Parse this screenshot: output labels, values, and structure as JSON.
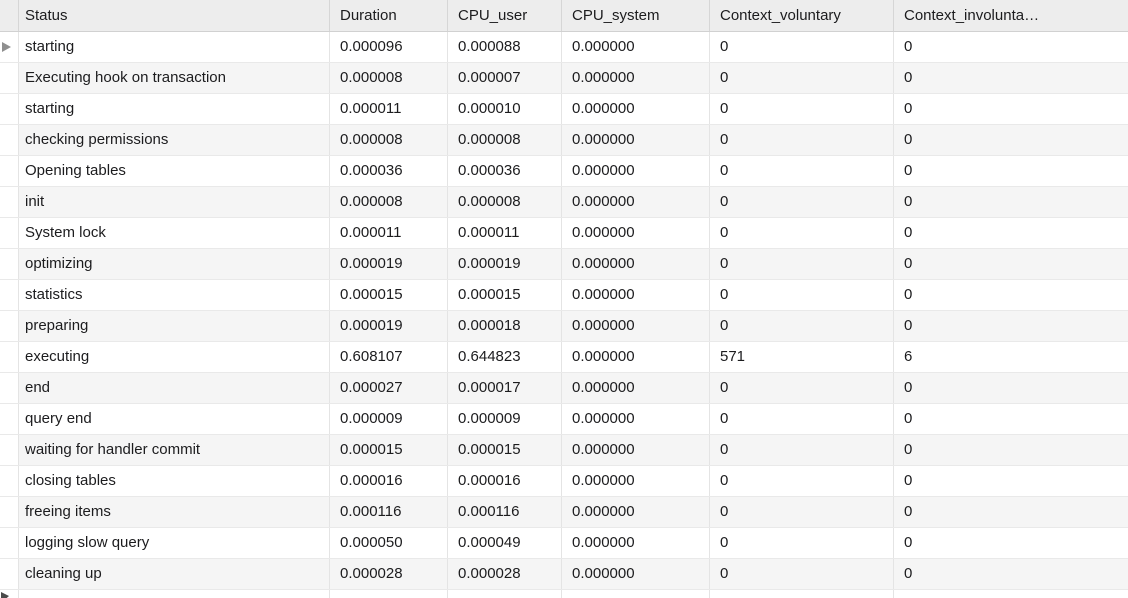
{
  "table": {
    "columns": [
      {
        "key": "status",
        "label": "Status"
      },
      {
        "key": "duration",
        "label": "Duration"
      },
      {
        "key": "cpu_user",
        "label": "CPU_user"
      },
      {
        "key": "cpu_system",
        "label": "CPU_system"
      },
      {
        "key": "context_voluntary",
        "label": "Context_voluntary"
      },
      {
        "key": "context_involuntary",
        "label": "Context_involunta…"
      }
    ],
    "rows": [
      [
        "starting",
        "0.000096",
        "0.000088",
        "0.000000",
        "0",
        "0"
      ],
      [
        "Executing hook on transaction",
        "0.000008",
        "0.000007",
        "0.000000",
        "0",
        "0"
      ],
      [
        "starting",
        "0.000011",
        "0.000010",
        "0.000000",
        "0",
        "0"
      ],
      [
        "checking permissions",
        "0.000008",
        "0.000008",
        "0.000000",
        "0",
        "0"
      ],
      [
        "Opening tables",
        "0.000036",
        "0.000036",
        "0.000000",
        "0",
        "0"
      ],
      [
        "init",
        "0.000008",
        "0.000008",
        "0.000000",
        "0",
        "0"
      ],
      [
        "System lock",
        "0.000011",
        "0.000011",
        "0.000000",
        "0",
        "0"
      ],
      [
        "optimizing",
        "0.000019",
        "0.000019",
        "0.000000",
        "0",
        "0"
      ],
      [
        "statistics",
        "0.000015",
        "0.000015",
        "0.000000",
        "0",
        "0"
      ],
      [
        "preparing",
        "0.000019",
        "0.000018",
        "0.000000",
        "0",
        "0"
      ],
      [
        "executing",
        "0.608107",
        "0.644823",
        "0.000000",
        "571",
        "6"
      ],
      [
        "end",
        "0.000027",
        "0.000017",
        "0.000000",
        "0",
        "0"
      ],
      [
        "query end",
        "0.000009",
        "0.000009",
        "0.000000",
        "0",
        "0"
      ],
      [
        "waiting for handler commit",
        "0.000015",
        "0.000015",
        "0.000000",
        "0",
        "0"
      ],
      [
        "closing tables",
        "0.000016",
        "0.000016",
        "0.000000",
        "0",
        "0"
      ],
      [
        "freeing items",
        "0.000116",
        "0.000116",
        "0.000000",
        "0",
        "0"
      ],
      [
        "logging slow query",
        "0.000050",
        "0.000049",
        "0.000000",
        "0",
        "0"
      ],
      [
        "cleaning up",
        "0.000028",
        "0.000028",
        "0.000000",
        "0",
        "0"
      ]
    ],
    "selected_row_index": 0
  },
  "colors": {
    "header_bg": "#ededed",
    "row_alt_bg": "#f5f5f5",
    "row_bg": "#ffffff",
    "text": "#1c1c1e",
    "grid_line": "#e4e4e4",
    "header_line": "#d6d6d6",
    "selection_marker": "#8f8f8f"
  }
}
